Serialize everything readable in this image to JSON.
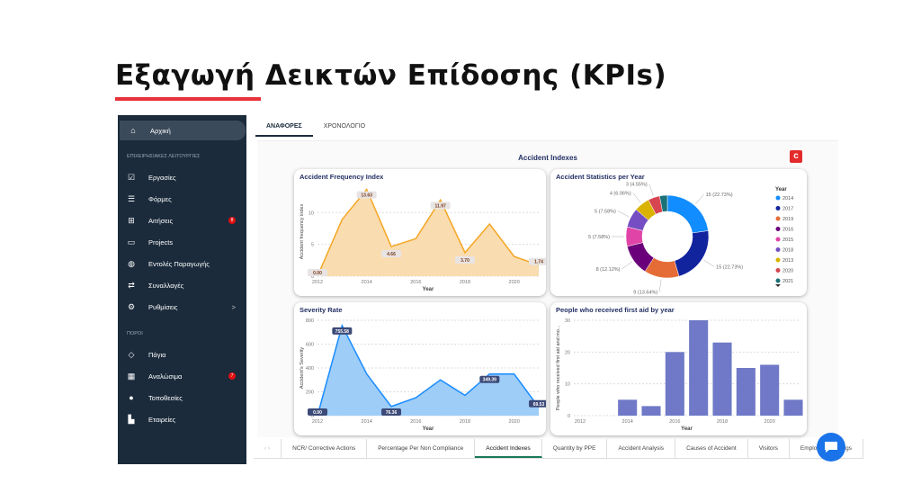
{
  "page_title": "Εξαγωγή Δεικτών Επίδοσης (KPIs)",
  "sidebar": {
    "home": "Αρχική",
    "section1": "ΕΠΙΧΕΙΡΗΣΙΑΚΕΣ ΛΕΙΤΟΥΡΓΙΕΣ",
    "items1": [
      {
        "label": "Εργασίες",
        "icon": "task-check-icon"
      },
      {
        "label": "Φόρμες",
        "icon": "list-icon"
      },
      {
        "label": "Αιτήσεις",
        "icon": "plus-box-icon",
        "badge": "8"
      },
      {
        "label": "Projects",
        "icon": "folder-icon"
      },
      {
        "label": "Εντολές Παραγωγής",
        "icon": "globe-icon"
      },
      {
        "label": "Συναλλαγές",
        "icon": "swap-icon"
      },
      {
        "label": "Ρυθμίσεις",
        "icon": "gear-icon",
        "chevron": ">"
      }
    ],
    "section2": "ΠΟΡΟΙ",
    "items2": [
      {
        "label": "Πάγια",
        "icon": "diamond-icon"
      },
      {
        "label": "Αναλώσιμα",
        "icon": "grid-icon",
        "badge": "7"
      },
      {
        "label": "Τοποθεσίες",
        "icon": "location-pin-icon"
      },
      {
        "label": "Εταιρείες",
        "icon": "building-icon"
      }
    ]
  },
  "tabs": [
    "ΑΝΑΦΟΡΕΣ",
    "ΧΡΟΝΟΛΟΓΙΟ"
  ],
  "dashboard_title": "Accident Indexes",
  "bottom_tabs": [
    "NCR/ Corrective Actions",
    "Percentage Per Non Compliance",
    "Accident Indexes",
    "Quantity by PPE",
    "Accident Analysis",
    "Causes of Accident",
    "Visitors",
    "Employee Trainings"
  ],
  "chart_data": [
    {
      "type": "area",
      "title": "Accident Frequency Index",
      "xlabel": "Year",
      "ylabel": "Accident frequency index",
      "x": [
        2012,
        2013,
        2014,
        2015,
        2016,
        2017,
        2018,
        2019,
        2020,
        2021
      ],
      "values": [
        0,
        8.9,
        13.63,
        4.66,
        5.9,
        11.97,
        3.7,
        8.2,
        3.1,
        1.74
      ],
      "data_labels": {
        "2012": "0.00",
        "2014": "13.63",
        "2015": "4.66",
        "2017": "11.97",
        "2018": "3.70",
        "2021": "1.74"
      },
      "ylim": [
        0,
        14
      ],
      "yticks": [
        0,
        5,
        10
      ],
      "xticks": [
        2012,
        2014,
        2016,
        2018,
        2020
      ],
      "color": "#f5a623",
      "fill": "#f9dcb0"
    },
    {
      "type": "pie",
      "title": "Accident Statistics per Year",
      "legend_title": "Year",
      "legend_position": "right",
      "slices": [
        {
          "label": "2014",
          "value": 15,
          "text": "15 (22.73%)",
          "color": "#118dff"
        },
        {
          "label": "2017",
          "value": 15,
          "text": "15 (22.73%)",
          "color": "#12239e"
        },
        {
          "label": "2019",
          "value": 9,
          "text": "9 (13.64%)",
          "color": "#e66c37"
        },
        {
          "label": "2016",
          "value": 8,
          "text": "8 (12.12%)",
          "color": "#6b007b"
        },
        {
          "label": "2015",
          "value": 5,
          "text": "5 (7.58%)",
          "color": "#e044a7"
        },
        {
          "label": "2018",
          "value": 5,
          "text": "5 (7.58%)",
          "color": "#744ec2"
        },
        {
          "label": "2013",
          "value": 4,
          "text": "4 (6.06%)",
          "color": "#d9b300"
        },
        {
          "label": "2020",
          "value": 3,
          "text": "3 (4.55%)",
          "color": "#d64550"
        },
        {
          "label": "2021",
          "value": 2,
          "text": "",
          "color": "#197278"
        }
      ]
    },
    {
      "type": "area",
      "title": "Severity Rate",
      "xlabel": "Year",
      "ylabel": "Accident's Severity",
      "x": [
        2012,
        2013,
        2014,
        2015,
        2016,
        2017,
        2018,
        2019,
        2020,
        2021
      ],
      "values": [
        0,
        755.58,
        350,
        76.36,
        150,
        300,
        170,
        349.39,
        349,
        69.53
      ],
      "data_labels": {
        "2012": "0.00",
        "2013": "755.58",
        "2015": "76.36",
        "2019": "349.39",
        "2021": "69.53"
      },
      "ylim": [
        0,
        800
      ],
      "yticks": [
        0,
        200,
        400,
        600,
        800
      ],
      "xticks": [
        2012,
        2014,
        2016,
        2018,
        2020
      ],
      "color": "#1a8cff",
      "fill": "#9ecdf7"
    },
    {
      "type": "bar",
      "title": "People who received first aid by year",
      "xlabel": "Year",
      "ylabel": "People who received first aid and mo...",
      "x": [
        2012,
        2013,
        2014,
        2015,
        2016,
        2017,
        2018,
        2019,
        2020,
        2021
      ],
      "values": [
        0,
        0,
        5,
        3,
        20,
        30,
        23,
        15,
        16,
        5
      ],
      "ylim": [
        0,
        30
      ],
      "yticks": [
        0,
        10,
        20,
        30
      ],
      "xticks": [
        2012,
        2014,
        2016,
        2018,
        2020
      ],
      "color": "#6f79c7"
    }
  ]
}
